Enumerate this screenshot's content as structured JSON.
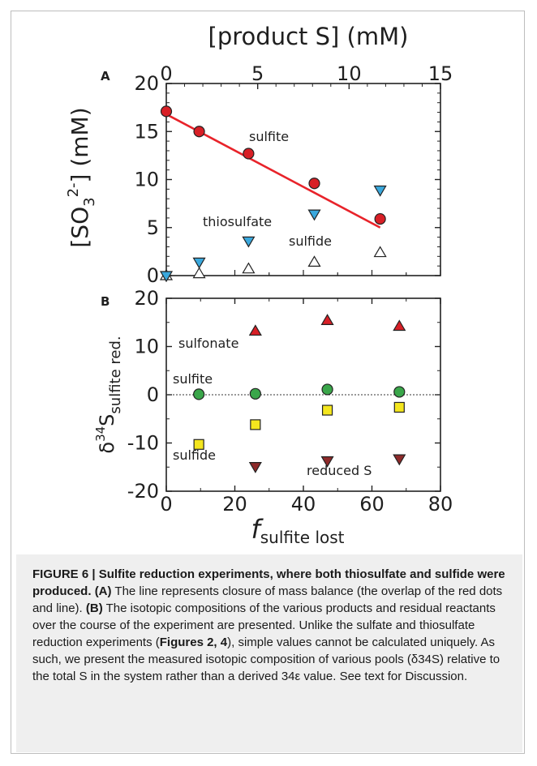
{
  "chart_data": [
    {
      "panel": "A",
      "type": "scatter",
      "top_axis": {
        "label": "[product S] (mM)",
        "range": [
          0,
          15
        ],
        "ticks": [
          "0",
          "5",
          "10",
          "15"
        ]
      },
      "ylabel": "[SO3 2-] (mM)",
      "ylim": [
        0,
        20
      ],
      "yticks": [
        "0",
        "5",
        "10",
        "15",
        "20"
      ],
      "x_axis_shared": "f sulfite lost",
      "xlim": [
        0,
        80
      ],
      "series": [
        {
          "name": "sulfite",
          "marker": "circle",
          "color": "#d81f26",
          "x": [
            0,
            1.8,
            4.5,
            8.1,
            11.7
          ],
          "y": [
            17.1,
            15.0,
            12.7,
            9.6,
            5.9
          ]
        },
        {
          "name": "thiosulfate",
          "marker": "triangle-down",
          "color": "#3aa8dd",
          "x": [
            0,
            1.8,
            4.5,
            8.1,
            11.7
          ],
          "y": [
            0,
            1.4,
            3.6,
            6.4,
            8.9
          ]
        },
        {
          "name": "sulfide",
          "marker": "triangle-up-open",
          "color": "#ffffff",
          "x": [
            0,
            1.8,
            4.5,
            8.1,
            11.7
          ],
          "y": [
            0,
            0.2,
            0.7,
            1.4,
            2.4
          ]
        }
      ],
      "fit_line": {
        "x": [
          0,
          11.7
        ],
        "y": [
          16.8,
          5.0
        ],
        "color": "#e8232a"
      }
    },
    {
      "panel": "B",
      "type": "scatter",
      "xlabel": "f sulfite lost",
      "xlim": [
        0,
        80
      ],
      "xticks": [
        "0",
        "20",
        "40",
        "60",
        "80"
      ],
      "ylabel": "δ34S sulfite red.",
      "ylim": [
        -20,
        20
      ],
      "yticks": [
        "-20",
        "-10",
        "0",
        "10",
        "20"
      ],
      "zero_line": true,
      "series": [
        {
          "name": "sulfonate",
          "marker": "triangle-up",
          "color": "#d81f26",
          "x": [
            26,
            47,
            68
          ],
          "y": [
            13.2,
            15.4,
            14.2
          ]
        },
        {
          "name": "sulfite",
          "marker": "circle",
          "color": "#3aa64a",
          "x": [
            9.5,
            26,
            47,
            68
          ],
          "y": [
            0.1,
            0.2,
            1.1,
            0.6
          ]
        },
        {
          "name": "sulfide",
          "marker": "square",
          "color": "#f4e61e",
          "x": [
            9.5,
            26,
            47,
            68
          ],
          "y": [
            -10.3,
            -6.2,
            -3.2,
            -2.6
          ]
        },
        {
          "name": "reduced S",
          "marker": "triangle-down",
          "color": "#8e2a2a",
          "x": [
            26,
            47,
            68
          ],
          "y": [
            -14.9,
            -13.7,
            -13.3
          ]
        }
      ]
    }
  ],
  "caption": {
    "figure_label": "FIGURE 6 | Sulfite reduction experiments, where both thiosulfate and sulfide were produced.",
    "part_a": "(A)",
    "text_a": " The line represents closure of mass balance (the overlap of the red dots and line). ",
    "part_b": "(B)",
    "text_b": " The isotopic compositions of the various products and residual reactants over the course of the experiment are presented. Unlike the sulfate and thiosulfate reduction experiments (",
    "fig_refs": "Figures 2, 4",
    "text_c": "), simple values cannot be calculated uniquely. As such, we present the measured isotopic composition of various pools (δ34S) relative to the total S in the system rather than a derived 34ε value. See text for Discussion."
  }
}
